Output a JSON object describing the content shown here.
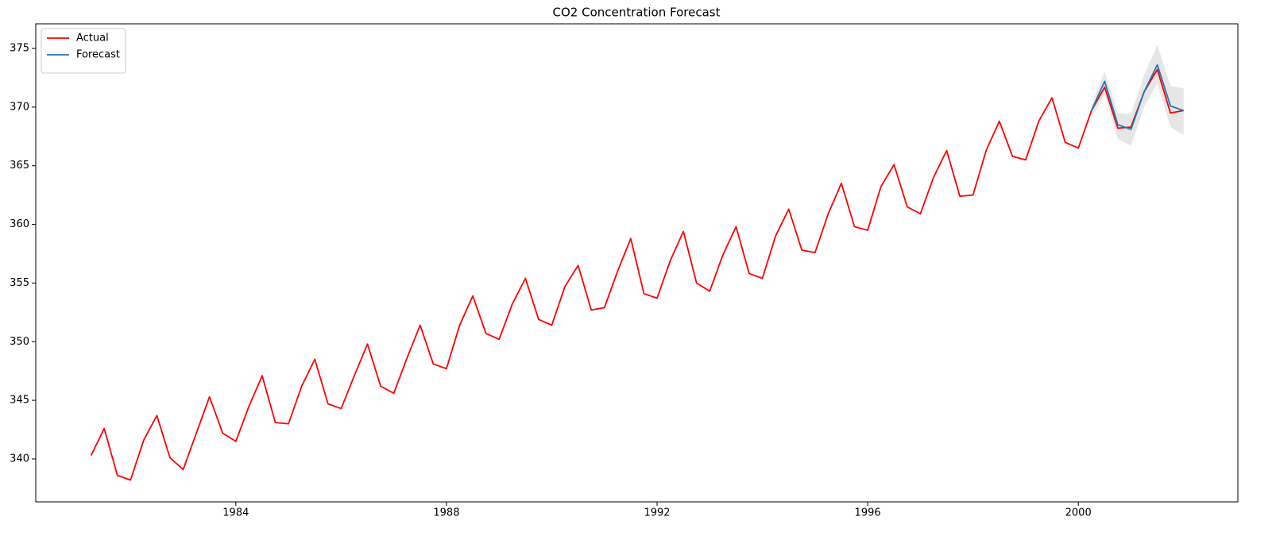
{
  "chart_data": {
    "type": "line",
    "title": "CO2 Concentration Forecast",
    "x": [
      1981.25,
      1981.5,
      1981.75,
      1982.0,
      1982.25,
      1982.5,
      1982.75,
      1983.0,
      1983.25,
      1983.5,
      1983.75,
      1984.0,
      1984.25,
      1984.5,
      1984.75,
      1985.0,
      1985.25,
      1985.5,
      1985.75,
      1986.0,
      1986.25,
      1986.5,
      1986.75,
      1987.0,
      1987.25,
      1987.5,
      1987.75,
      1988.0,
      1988.25,
      1988.5,
      1988.75,
      1989.0,
      1989.25,
      1989.5,
      1989.75,
      1990.0,
      1990.25,
      1990.5,
      1990.75,
      1991.0,
      1991.25,
      1991.5,
      1991.75,
      1992.0,
      1992.25,
      1992.5,
      1992.75,
      1993.0,
      1993.25,
      1993.5,
      1993.75,
      1994.0,
      1994.25,
      1994.5,
      1994.75,
      1995.0,
      1995.25,
      1995.5,
      1995.75,
      1996.0,
      1996.25,
      1996.5,
      1996.75,
      1997.0,
      1997.25,
      1997.5,
      1997.75,
      1998.0,
      1998.25,
      1998.5,
      1998.75,
      1999.0,
      1999.25,
      1999.5,
      1999.75,
      2000.0,
      2000.25,
      2000.5,
      2000.75,
      2001.0,
      2001.25,
      2001.5,
      2001.75,
      2002.0
    ],
    "series": [
      {
        "name": "Actual",
        "color": "#ff0000",
        "values": [
          340.3,
          342.6,
          338.6,
          338.2,
          341.6,
          343.7,
          340.1,
          339.1,
          342.2,
          345.3,
          342.2,
          341.5,
          344.5,
          347.1,
          343.1,
          343.0,
          346.2,
          348.5,
          344.7,
          344.3,
          347.1,
          349.8,
          346.2,
          345.6,
          348.6,
          351.4,
          348.1,
          347.7,
          351.4,
          353.9,
          350.7,
          350.2,
          353.2,
          355.4,
          351.9,
          351.4,
          354.7,
          356.5,
          352.7,
          352.9,
          356.0,
          358.8,
          354.1,
          353.7,
          356.9,
          359.4,
          355.0,
          354.3,
          357.4,
          359.8,
          355.8,
          355.4,
          359.0,
          361.3,
          357.8,
          357.6,
          360.9,
          363.5,
          359.8,
          359.5,
          363.2,
          365.1,
          361.5,
          360.9,
          364.0,
          366.3,
          362.4,
          362.5,
          366.3,
          368.8,
          365.8,
          365.5,
          368.8,
          370.8,
          367.0,
          366.5,
          369.7,
          371.7,
          368.2,
          368.3,
          371.3,
          373.2,
          369.5,
          369.7
        ]
      },
      {
        "name": "Forecast",
        "color": "#1f77b4",
        "x": [
          2000.25,
          2000.5,
          2000.75,
          2001.0,
          2001.25,
          2001.5,
          2001.75,
          2002.0
        ],
        "values": [
          369.7,
          372.2,
          368.5,
          368.1,
          371.3,
          373.6,
          370.1,
          369.7
        ],
        "lower": [
          369.1,
          371.1,
          367.3,
          366.7,
          370.0,
          372.0,
          368.3,
          367.6
        ],
        "upper": [
          370.2,
          373.0,
          369.5,
          369.4,
          372.7,
          375.3,
          371.8,
          371.6
        ],
        "band_color": "#808080"
      }
    ],
    "xlim": [
      1980.2,
      2003.03
    ],
    "xticks": [
      1984,
      1988,
      1992,
      1996,
      2000
    ],
    "ylim": [
      336.34,
      377.1
    ],
    "yticks": [
      340,
      345,
      350,
      355,
      360,
      365,
      370,
      375
    ],
    "grid": false,
    "legend": "upper-left"
  }
}
